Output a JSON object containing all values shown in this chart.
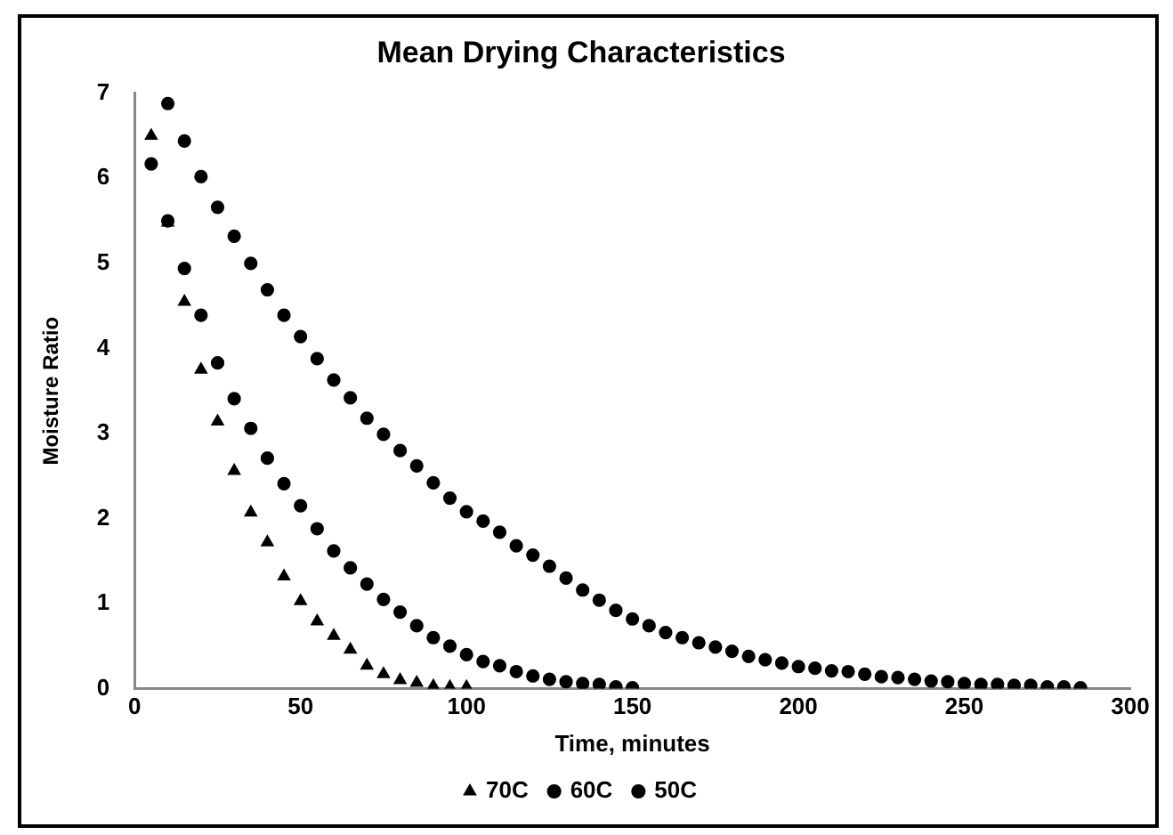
{
  "chart_data": {
    "type": "scatter",
    "title": "Mean Drying Characteristics",
    "xlabel": "Time, minutes",
    "ylabel": "Moisture Ratio",
    "xlim": [
      0,
      300
    ],
    "xticks": [
      0,
      50,
      100,
      150,
      200,
      250,
      300
    ],
    "ylim": [
      0,
      7
    ],
    "yticks": [
      0,
      1,
      2,
      3,
      4,
      5,
      6,
      7
    ],
    "grid": false,
    "legend": "bottom",
    "series": [
      {
        "name": "70C",
        "color": "#000000",
        "marker": "triangle",
        "x": [
          5,
          10,
          15,
          20,
          25,
          30,
          35,
          40,
          45,
          50,
          55,
          60,
          65,
          70,
          75,
          80,
          85,
          90,
          95,
          100
        ],
        "values": [
          6.5,
          5.48,
          4.55,
          3.75,
          3.14,
          2.56,
          2.07,
          1.72,
          1.32,
          1.03,
          0.79,
          0.62,
          0.46,
          0.27,
          0.17,
          0.1,
          0.07,
          0.03,
          0.02,
          0.02
        ]
      },
      {
        "name": "60C",
        "color": "#000000",
        "marker": "circle",
        "x": [
          5,
          10,
          15,
          20,
          25,
          30,
          35,
          40,
          45,
          50,
          55,
          60,
          65,
          70,
          75,
          80,
          85,
          90,
          95,
          100,
          105,
          110,
          115,
          120,
          125,
          130,
          135,
          140,
          145,
          150
        ],
        "values": [
          6.17,
          5.5,
          4.94,
          4.39,
          3.83,
          3.41,
          3.06,
          2.71,
          2.41,
          2.15,
          1.88,
          1.62,
          1.42,
          1.23,
          1.05,
          0.9,
          0.74,
          0.6,
          0.5,
          0.4,
          0.32,
          0.27,
          0.2,
          0.15,
          0.11,
          0.08,
          0.06,
          0.05,
          0.02,
          0.01
        ]
      },
      {
        "name": "50C",
        "color": "#000000",
        "marker": "circle",
        "x": [
          10,
          15,
          20,
          25,
          30,
          35,
          40,
          45,
          50,
          55,
          60,
          65,
          70,
          75,
          80,
          85,
          90,
          95,
          100,
          105,
          110,
          115,
          120,
          125,
          130,
          135,
          140,
          145,
          150,
          155,
          160,
          165,
          170,
          175,
          180,
          185,
          190,
          195,
          200,
          205,
          210,
          215,
          220,
          225,
          230,
          235,
          240,
          245,
          250,
          255,
          260,
          265,
          270,
          275,
          280,
          285
        ],
        "values": [
          6.88,
          6.44,
          6.02,
          5.66,
          5.32,
          5.0,
          4.69,
          4.39,
          4.14,
          3.88,
          3.63,
          3.42,
          3.18,
          2.99,
          2.8,
          2.62,
          2.42,
          2.24,
          2.08,
          1.97,
          1.84,
          1.68,
          1.57,
          1.44,
          1.3,
          1.16,
          1.04,
          0.92,
          0.82,
          0.74,
          0.66,
          0.6,
          0.54,
          0.49,
          0.44,
          0.38,
          0.34,
          0.3,
          0.26,
          0.24,
          0.21,
          0.2,
          0.17,
          0.14,
          0.13,
          0.11,
          0.09,
          0.08,
          0.06,
          0.05,
          0.05,
          0.04,
          0.04,
          0.02,
          0.02,
          0.01
        ]
      }
    ]
  }
}
